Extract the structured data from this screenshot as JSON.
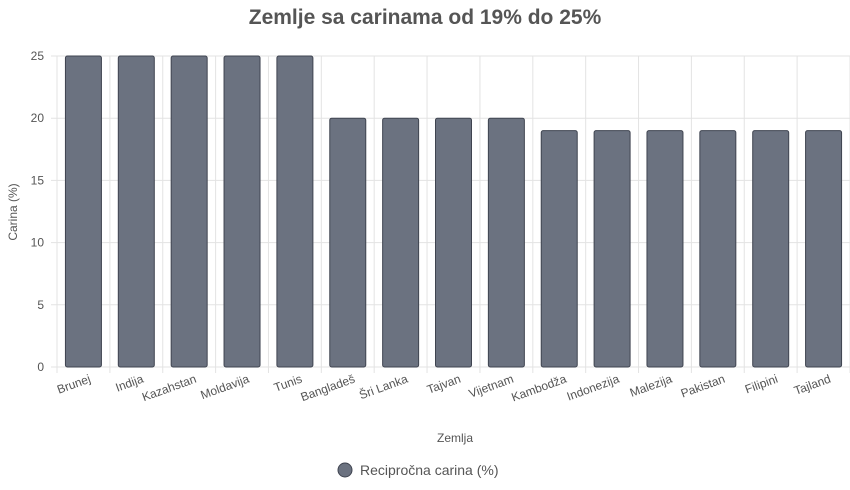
{
  "chart_data": {
    "type": "bar",
    "title": "Zemlje sa carinama od 19% do 25%",
    "xlabel": "Zemlja",
    "ylabel": "Carina (%)",
    "ylim": [
      0,
      25
    ],
    "yticks": [
      0,
      5,
      10,
      15,
      20,
      25
    ],
    "grid": true,
    "legend_position": "bottom",
    "categories": [
      "Brunej",
      "Indija",
      "Kazahstan",
      "Moldavija",
      "Tunis",
      "Bangladeš",
      "Šri Lanka",
      "Tajvan",
      "Vijetnam",
      "Kambodža",
      "Indonezija",
      "Malezija",
      "Pakistan",
      "Filipini",
      "Tajland"
    ],
    "series": [
      {
        "name": "Recipročna carina (%)",
        "color": "#6b7280",
        "border_color": "#3f4450",
        "values": [
          25,
          25,
          25,
          25,
          25,
          20,
          20,
          20,
          20,
          19,
          19,
          19,
          19,
          19,
          19
        ]
      }
    ],
    "grid_color": "#e3e3e3",
    "axis_color": "#cccccc"
  }
}
